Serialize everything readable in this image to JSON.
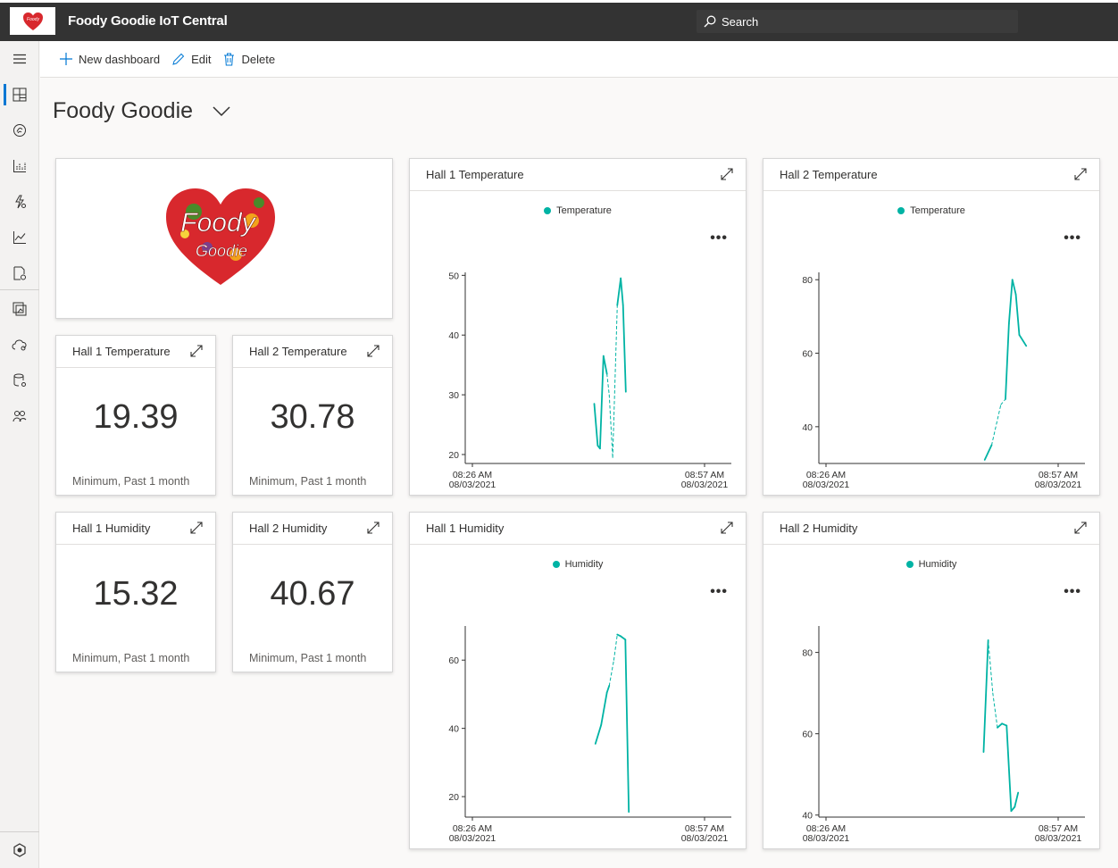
{
  "app": {
    "title": "Foody Goodie IoT Central",
    "logo_text": "Foody Goodie"
  },
  "search": {
    "placeholder": "Search"
  },
  "commands": {
    "new_dashboard": "New dashboard",
    "edit": "Edit",
    "delete": "Delete"
  },
  "dashboard": {
    "title": "Foody Goodie"
  },
  "logo_tile": {
    "line1": "Foody",
    "line2": "Goodie"
  },
  "kpis": [
    {
      "title": "Hall 1 Temperature",
      "value": "19.39",
      "caption": "Minimum, Past 1 month"
    },
    {
      "title": "Hall 2 Temperature",
      "value": "30.78",
      "caption": "Minimum, Past 1 month"
    },
    {
      "title": "Hall 1 Humidity",
      "value": "15.32",
      "caption": "Minimum, Past 1 month"
    },
    {
      "title": "Hall 2 Humidity",
      "value": "40.67",
      "caption": "Minimum, Past 1 month"
    }
  ],
  "colors": {
    "series": "#00b3a4",
    "accent": "#0078d4",
    "topbar": "#333333"
  },
  "chart_data": [
    {
      "type": "line",
      "title": "Hall 1 Temperature",
      "series": [
        {
          "name": "Temperature"
        }
      ],
      "x_ticks": [
        [
          "08:26 AM",
          "08/03/2021"
        ],
        [
          "08:57 AM",
          "08/03/2021"
        ]
      ],
      "yticks": [
        20,
        30,
        40,
        50
      ],
      "ylim": [
        18.5,
        50.5
      ],
      "points": [
        [
          0.56,
          28.5
        ],
        [
          0.575,
          21.5
        ],
        [
          0.585,
          21
        ],
        [
          0.6,
          36.5
        ],
        [
          0.615,
          33.5
        ],
        [
          0.625,
          30
        ],
        [
          0.64,
          19.5
        ],
        [
          0.66,
          45
        ],
        [
          0.675,
          49.5
        ],
        [
          0.685,
          45
        ],
        [
          0.697,
          30.5
        ]
      ],
      "dashed": [
        [
          4,
          5
        ],
        [
          5,
          6
        ],
        [
          6,
          7
        ]
      ]
    },
    {
      "type": "line",
      "title": "Hall 2 Temperature",
      "series": [
        {
          "name": "Temperature"
        }
      ],
      "x_ticks": [
        [
          "08:26 AM",
          "08/03/2021"
        ],
        [
          "08:57 AM",
          "08/03/2021"
        ]
      ],
      "yticks": [
        40,
        60,
        80
      ],
      "ylim": [
        30,
        82
      ],
      "points": [
        [
          0.72,
          31
        ],
        [
          0.75,
          35
        ],
        [
          0.79,
          46
        ],
        [
          0.81,
          47.5
        ],
        [
          0.825,
          68
        ],
        [
          0.84,
          80
        ],
        [
          0.855,
          76
        ],
        [
          0.87,
          65
        ],
        [
          0.9,
          62
        ]
      ],
      "dashed": [
        [
          1,
          2
        ],
        [
          2,
          3
        ]
      ]
    },
    {
      "type": "line",
      "title": "Hall 1 Humidity",
      "series": [
        {
          "name": "Humidity"
        }
      ],
      "x_ticks": [
        [
          "08:26 AM",
          "08/03/2021"
        ],
        [
          "08:57 AM",
          "08/03/2021"
        ]
      ],
      "yticks": [
        20,
        40,
        60
      ],
      "ylim": [
        14,
        70
      ],
      "points": [
        [
          0.565,
          35.5
        ],
        [
          0.59,
          41
        ],
        [
          0.615,
          50.5
        ],
        [
          0.625,
          52.5
        ],
        [
          0.645,
          60
        ],
        [
          0.66,
          67.5
        ],
        [
          0.675,
          67
        ],
        [
          0.695,
          66
        ],
        [
          0.71,
          15.5
        ]
      ],
      "dashed": [
        [
          3,
          4
        ],
        [
          4,
          5
        ]
      ]
    },
    {
      "type": "line",
      "title": "Hall 2 Humidity",
      "series": [
        {
          "name": "Humidity"
        }
      ],
      "x_ticks": [
        [
          "08:26 AM",
          "08/03/2021"
        ],
        [
          "08:57 AM",
          "08/03/2021"
        ]
      ],
      "yticks": [
        40,
        60,
        80
      ],
      "ylim": [
        39.5,
        86.5
      ],
      "points": [
        [
          0.715,
          55.5
        ],
        [
          0.735,
          83
        ],
        [
          0.755,
          70
        ],
        [
          0.775,
          61.5
        ],
        [
          0.795,
          62.5
        ],
        [
          0.815,
          62
        ],
        [
          0.835,
          41
        ],
        [
          0.85,
          42
        ],
        [
          0.865,
          45.5
        ]
      ],
      "dashed": [
        [
          1,
          2
        ],
        [
          2,
          3
        ]
      ]
    }
  ]
}
